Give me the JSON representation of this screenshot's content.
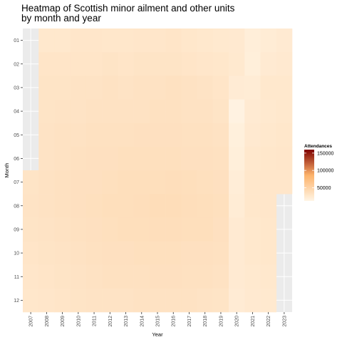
{
  "chart_data": {
    "type": "heatmap",
    "title": "Heatmap of Scottish minor ailment and other units by month and year",
    "xlabel": "Year",
    "ylabel": "Month",
    "x_categories": [
      "2007",
      "2008",
      "2009",
      "2010",
      "2011",
      "2012",
      "2013",
      "2014",
      "2015",
      "2016",
      "2017",
      "2018",
      "2019",
      "2020",
      "2021",
      "2022",
      "2023"
    ],
    "y_categories": [
      "01",
      "02",
      "03",
      "04",
      "05",
      "06",
      "07",
      "08",
      "09",
      "10",
      "11",
      "12"
    ],
    "legend": {
      "title": "Attendances",
      "ticks": [
        50000,
        100000,
        150000
      ],
      "tick_labels": [
        "50000",
        "100000",
        "150000"
      ],
      "range": [
        12000,
        160000
      ],
      "position": "right"
    },
    "colors": {
      "scale_low": "#fff5e6",
      "scale_mid": "#fdb36b",
      "scale_high": "#7f0000",
      "panel_bg": "#ebebeb",
      "grid": "#ffffff"
    },
    "grid": true,
    "values": [
      [
        null,
        27000,
        27000,
        29000,
        29000,
        28000,
        28000,
        29000,
        29000,
        30000,
        28000,
        27000,
        26000,
        25000,
        20000,
        22000,
        24000
      ],
      [
        null,
        30000,
        30000,
        30000,
        30000,
        31000,
        30000,
        31000,
        31000,
        31000,
        30000,
        29000,
        28000,
        26000,
        19000,
        24000,
        25000
      ],
      [
        null,
        31000,
        31000,
        32000,
        32000,
        33000,
        32000,
        33000,
        33000,
        34000,
        33000,
        32000,
        30000,
        23000,
        22000,
        27000,
        27000
      ],
      [
        null,
        31000,
        32000,
        32000,
        33000,
        33000,
        33000,
        33000,
        34000,
        34000,
        33000,
        33000,
        31000,
        15000,
        24000,
        26000,
        27000
      ],
      [
        null,
        32000,
        33000,
        33000,
        34000,
        34000,
        34000,
        35000,
        35000,
        35000,
        34000,
        34000,
        33000,
        18000,
        25000,
        27000,
        28000
      ],
      [
        null,
        32000,
        33000,
        34000,
        35000,
        35000,
        36000,
        36000,
        36000,
        36000,
        35000,
        35000,
        34000,
        19000,
        27000,
        28000,
        29000
      ],
      [
        31000,
        33000,
        34000,
        35000,
        35000,
        36000,
        37000,
        37000,
        37000,
        38000,
        37000,
        36000,
        35000,
        21000,
        28000,
        29000,
        29000
      ],
      [
        32000,
        33000,
        34000,
        35000,
        36000,
        37000,
        37000,
        38000,
        39000,
        39000,
        38000,
        37000,
        36000,
        22000,
        28000,
        29000,
        null
      ],
      [
        31000,
        32000,
        33000,
        34000,
        35000,
        36000,
        37000,
        37000,
        38000,
        38000,
        37000,
        37000,
        35000,
        24000,
        27000,
        28000,
        null
      ],
      [
        30000,
        31000,
        32000,
        33000,
        34000,
        35000,
        35000,
        36000,
        36000,
        36000,
        35000,
        35000,
        34000,
        24000,
        27000,
        28000,
        null
      ],
      [
        29000,
        30000,
        31000,
        32000,
        33000,
        34000,
        34000,
        34000,
        35000,
        35000,
        34000,
        34000,
        33000,
        24000,
        26000,
        27000,
        null
      ],
      [
        28000,
        29000,
        30000,
        31000,
        32000,
        32000,
        32000,
        33000,
        33000,
        33000,
        33000,
        32000,
        31000,
        23000,
        25000,
        26000,
        null
      ]
    ]
  }
}
